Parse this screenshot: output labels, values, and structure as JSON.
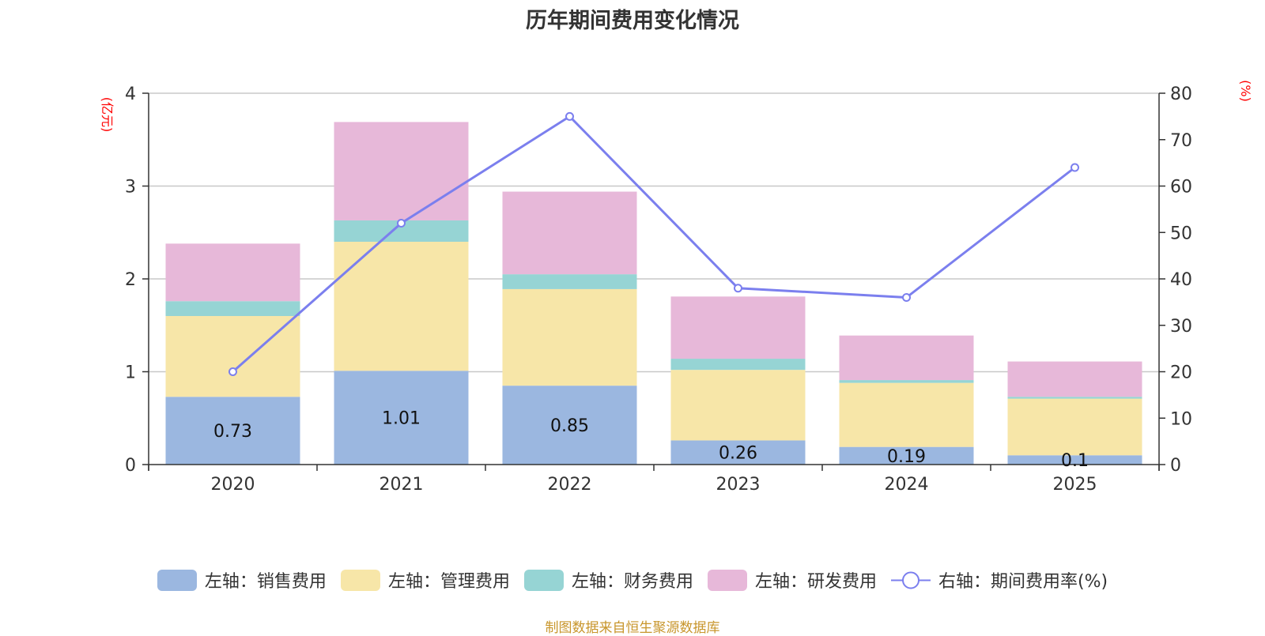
{
  "chart_data": {
    "type": "bar",
    "title": "历年期间费用变化情况",
    "categories": [
      "2020",
      "2021",
      "2022",
      "2023",
      "2024",
      "2025"
    ],
    "left_axis": {
      "label": "(亿元)",
      "ylim": [
        0,
        4
      ],
      "ticks": [
        "0",
        "1",
        "2",
        "3",
        "4"
      ]
    },
    "right_axis": {
      "label": "(%)",
      "ylim": [
        0,
        80
      ],
      "ticks": [
        "0",
        "10",
        "20",
        "30",
        "40",
        "50",
        "60",
        "70",
        "80"
      ]
    },
    "series": [
      {
        "name": "左轴：销售费用",
        "type": "bar",
        "stack": true,
        "color": "#9bb7e0",
        "values": [
          0.73,
          1.01,
          0.85,
          0.26,
          0.19,
          0.1
        ],
        "labels": [
          "0.73",
          "1.01",
          "0.85",
          "0.26",
          "0.19",
          "0.1"
        ]
      },
      {
        "name": "左轴：管理费用",
        "type": "bar",
        "stack": true,
        "color": "#f7e6a8",
        "values": [
          0.87,
          1.39,
          1.04,
          0.76,
          0.69,
          0.61
        ]
      },
      {
        "name": "左轴：财务费用",
        "type": "bar",
        "stack": true,
        "color": "#96d4d4",
        "values": [
          0.16,
          0.23,
          0.16,
          0.12,
          0.03,
          0.02
        ]
      },
      {
        "name": "左轴：研发费用",
        "type": "bar",
        "stack": true,
        "color": "#e7b8d9",
        "values": [
          0.62,
          1.06,
          0.89,
          0.67,
          0.48,
          0.38
        ]
      },
      {
        "name": "右轴：期间费用率(%)",
        "type": "line",
        "axis": "right",
        "color": "#7b7fee",
        "values": [
          20,
          52,
          75,
          38,
          36,
          64
        ]
      }
    ],
    "grid": true,
    "legend_position": "bottom"
  },
  "source_note": "制图数据来自恒生聚源数据库"
}
